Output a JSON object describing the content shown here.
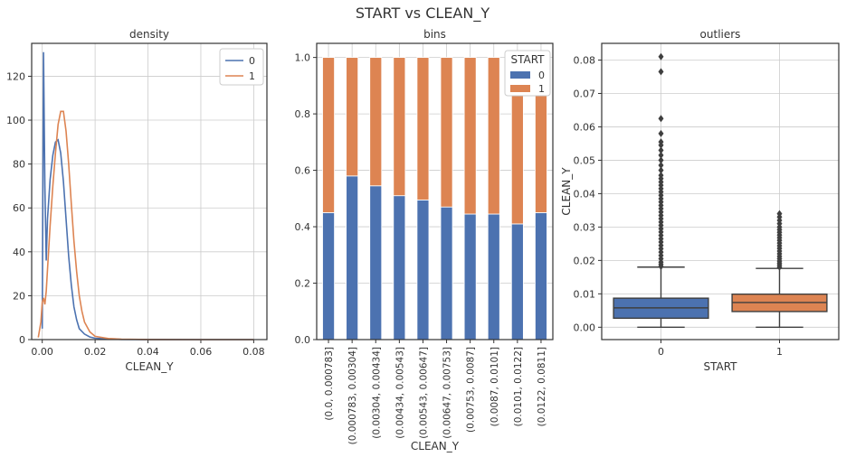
{
  "suptitle": "START   vs   CLEAN_Y",
  "chart_data": [
    {
      "type": "line",
      "title": "density",
      "xlabel": "CLEAN_Y",
      "ylabel": "",
      "xlim": [
        -0.004,
        0.085
      ],
      "ylim": [
        0,
        135
      ],
      "xticks": [
        0.0,
        0.02,
        0.04,
        0.06,
        0.08
      ],
      "xtick_labels": [
        "0.00",
        "0.02",
        "0.04",
        "0.06",
        "0.08"
      ],
      "yticks": [
        0,
        20,
        40,
        60,
        80,
        100,
        120
      ],
      "grid": true,
      "legend": "top-right",
      "series": [
        {
          "name": "0",
          "color": "#4c72b0",
          "x": [
            0.0,
            0.0005,
            0.001,
            0.0015,
            0.002,
            0.003,
            0.004,
            0.005,
            0.006,
            0.007,
            0.008,
            0.009,
            0.01,
            0.011,
            0.012,
            0.013,
            0.014,
            0.016,
            0.018,
            0.02,
            0.025,
            0.03,
            0.04,
            0.06,
            0.08
          ],
          "values": [
            5,
            131,
            70,
            36,
            55,
            73,
            84,
            90,
            91,
            85,
            72,
            55,
            38,
            25,
            15,
            9,
            5,
            2.5,
            1.2,
            0.6,
            0.3,
            0.1,
            0.05,
            0.02,
            0
          ]
        },
        {
          "name": "1",
          "color": "#dd8452",
          "x": [
            -0.0015,
            -0.0005,
            0.0,
            0.0005,
            0.001,
            0.0015,
            0.002,
            0.003,
            0.004,
            0.005,
            0.006,
            0.007,
            0.008,
            0.009,
            0.01,
            0.011,
            0.012,
            0.013,
            0.014,
            0.015,
            0.016,
            0.018,
            0.02,
            0.025,
            0.03,
            0.04,
            0.06,
            0.08
          ],
          "values": [
            1,
            8,
            17,
            19,
            16,
            22,
            32,
            52,
            70,
            85,
            98,
            104,
            104,
            95,
            80,
            62,
            45,
            31,
            20,
            13,
            8,
            3.5,
            1.5,
            0.5,
            0.2,
            0.05,
            0.02,
            0
          ]
        }
      ]
    },
    {
      "type": "bar",
      "title": "bins",
      "xlabel": "CLEAN_Y",
      "ylabel": "",
      "ylim": [
        0,
        1.05
      ],
      "yticks": [
        0.0,
        0.2,
        0.4,
        0.6,
        0.8,
        1.0
      ],
      "ytick_labels": [
        "0.0",
        "0.2",
        "0.4",
        "0.6",
        "0.8",
        "1.0"
      ],
      "stacked": true,
      "grid": true,
      "legend": "top-right",
      "legend_title": "START",
      "categories": [
        "(0.0, 0.000783]",
        "(0.000783, 0.00304]",
        "(0.00304, 0.00434]",
        "(0.00434, 0.00543]",
        "(0.00543, 0.00647]",
        "(0.00647, 0.00753]",
        "(0.00753, 0.0087]",
        "(0.0087, 0.0101]",
        "(0.0101, 0.0122]",
        "(0.0122, 0.0811]"
      ],
      "series": [
        {
          "name": "0",
          "color": "#4c72b0",
          "values": [
            0.45,
            0.58,
            0.545,
            0.51,
            0.495,
            0.47,
            0.445,
            0.445,
            0.41,
            0.45
          ]
        },
        {
          "name": "1",
          "color": "#dd8452",
          "values": [
            0.55,
            0.42,
            0.455,
            0.49,
            0.505,
            0.53,
            0.555,
            0.555,
            0.59,
            0.55
          ]
        }
      ]
    },
    {
      "type": "box",
      "title": "outliers",
      "xlabel": "START",
      "ylabel": "CLEAN_Y",
      "ylim": [
        -0.0037,
        0.085
      ],
      "yticks": [
        0.0,
        0.01,
        0.02,
        0.03,
        0.04,
        0.05,
        0.06,
        0.07,
        0.08
      ],
      "ytick_labels": [
        "0.00",
        "0.01",
        "0.02",
        "0.03",
        "0.04",
        "0.05",
        "0.06",
        "0.07",
        "0.08"
      ],
      "categories": [
        "0",
        "1"
      ],
      "grid": true,
      "boxes": [
        {
          "name": "0",
          "color": "#4c72b0",
          "whisker_low": 0.0,
          "q1": 0.0027,
          "median": 0.0058,
          "q3": 0.0087,
          "whisker_high": 0.018,
          "outliers": [
            0.0182,
            0.0188,
            0.0195,
            0.0205,
            0.0215,
            0.0225,
            0.0235,
            0.0245,
            0.0255,
            0.0265,
            0.0275,
            0.0285,
            0.0295,
            0.0305,
            0.0315,
            0.0325,
            0.0335,
            0.0345,
            0.0355,
            0.0365,
            0.0375,
            0.0385,
            0.0395,
            0.0405,
            0.0415,
            0.0425,
            0.0435,
            0.0445,
            0.0455,
            0.047,
            0.0485,
            0.05,
            0.0515,
            0.053,
            0.0545,
            0.0555,
            0.058,
            0.0625,
            0.0765,
            0.081
          ]
        },
        {
          "name": "1",
          "color": "#dd8452",
          "whisker_low": 0.0,
          "q1": 0.0047,
          "median": 0.0074,
          "q3": 0.0099,
          "whisker_high": 0.0176,
          "outliers": [
            0.018,
            0.0186,
            0.0192,
            0.0198,
            0.0205,
            0.0212,
            0.022,
            0.0228,
            0.0236,
            0.0244,
            0.0252,
            0.026,
            0.0268,
            0.0276,
            0.0284,
            0.0292,
            0.03,
            0.031,
            0.032,
            0.033,
            0.034
          ]
        }
      ]
    }
  ]
}
